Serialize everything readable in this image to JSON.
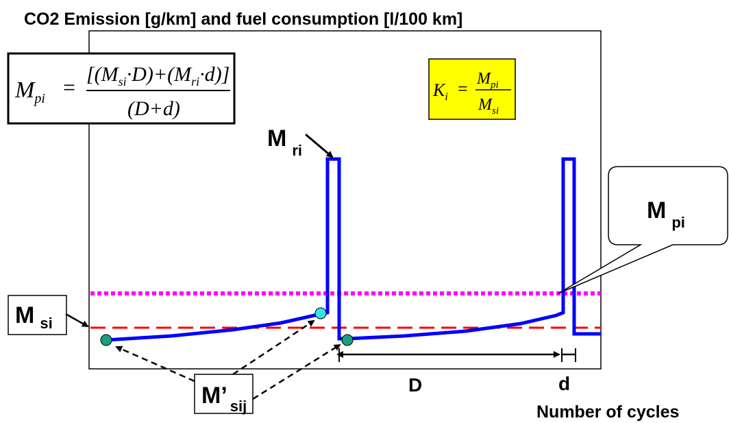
{
  "title": "CO2  Emission [g/km] and fuel consumption [l/100 km]",
  "x_axis_label": "Number of cycles",
  "formula_mpi": {
    "lhs_symbol": "M",
    "lhs_sub": "pi",
    "eq": "=",
    "num_open": "[(",
    "num_m1": "M",
    "num_m1_sub": "si",
    "dot": "·",
    "num_D": "D",
    "num_mid": ")+(",
    "num_m2": "M",
    "num_m2_sub": "ri",
    "num_d": "d",
    "num_close": ")]",
    "den": "(D+d)"
  },
  "formula_k": {
    "lhs": "K",
    "lhs_sub": "i",
    "eq": "=",
    "num": "M",
    "num_sub": "pi",
    "den": "M",
    "den_sub": "si"
  },
  "labels": {
    "m_ri": "M",
    "m_ri_sub": "ri",
    "m_si": "M",
    "m_si_sub": "si",
    "m_pi": "M",
    "m_pi_sub": "pi",
    "m_sij": "M’",
    "m_sij_sub": "sij",
    "D": "D",
    "d": "d"
  },
  "colors": {
    "signal": "#0000ff",
    "mean_line": "#ff00ff",
    "threshold_line": "#ff0000",
    "marker_teal": "#1a9e7e",
    "marker_cyan": "#33e6e6",
    "k_box_fill": "#ffff00"
  }
}
